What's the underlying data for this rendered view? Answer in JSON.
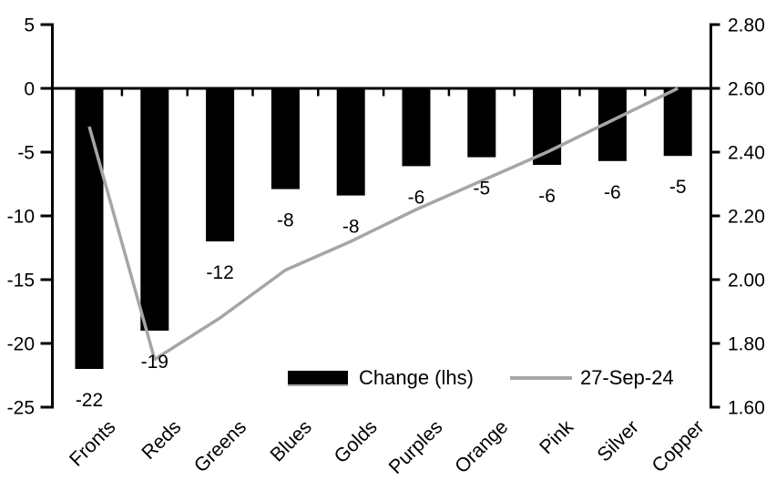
{
  "chart_data": {
    "type": "bar",
    "subtype": "combo bar + line, dual axis",
    "title": "",
    "xlabel": "",
    "ylabel": "",
    "grid": "off",
    "background_color": "#ffffff",
    "categories": [
      "Fronts",
      "Reds",
      "Greens",
      "Blues",
      "Golds",
      "Purples",
      "Orange",
      "Pink",
      "Silver",
      "Copper"
    ],
    "series": [
      {
        "name": "Change (lhs)",
        "type": "bar",
        "axis": "left",
        "color": "#000000",
        "values": [
          -22,
          -19,
          -12,
          -7.9,
          -8.4,
          -6.1,
          -5.4,
          -6.0,
          -5.7,
          -5.3
        ],
        "data_labels": [
          "-22",
          "-19",
          "-12",
          "-8",
          "-8",
          "-6",
          "-5",
          "-6",
          "-6",
          "-5"
        ]
      },
      {
        "name": "27-Sep-24",
        "type": "line",
        "axis": "right",
        "color": "#a6a6a6",
        "values": [
          2.48,
          1.75,
          1.88,
          2.03,
          2.12,
          2.22,
          2.31,
          2.4,
          2.5,
          2.6
        ]
      }
    ],
    "left_axis": {
      "min": -25,
      "max": 5,
      "ticks": [
        "5",
        "0",
        "-5",
        "-10",
        "-15",
        "-20",
        "-25"
      ]
    },
    "right_axis": {
      "min": 1.6,
      "max": 2.8,
      "ticks": [
        "2.80",
        "2.60",
        "2.40",
        "2.20",
        "2.00",
        "1.80",
        "1.60"
      ]
    },
    "legend": {
      "position": "bottom-center"
    },
    "axis_color": "#000000"
  }
}
